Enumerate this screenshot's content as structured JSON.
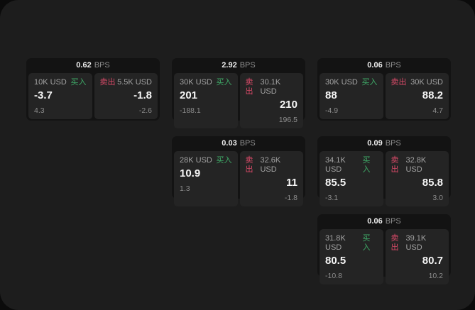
{
  "labels": {
    "bps_unit": "BPS",
    "buy": "买入",
    "sell": "卖出"
  },
  "colors": {
    "panel_bg": "#1d1d1d",
    "card_bg": "#131313",
    "tile_bg": "#242424",
    "buy_green": "#3fab68",
    "sell_red": "#d94a68"
  },
  "cards": [
    {
      "bps": "0.62",
      "buy": {
        "amount": "10K USD",
        "price": "-3.7",
        "sub": "4.3"
      },
      "sell": {
        "amount": "5.5K USD",
        "price": "-1.8",
        "sub": "-2.6"
      }
    },
    {
      "bps": "2.92",
      "buy": {
        "amount": "30K USD",
        "price": "201",
        "sub": "-188.1"
      },
      "sell": {
        "amount": "30.1K USD",
        "price": "210",
        "sub": "196.5"
      }
    },
    {
      "bps": "0.06",
      "buy": {
        "amount": "30K USD",
        "price": "88",
        "sub": "-4.9"
      },
      "sell": {
        "amount": "30K USD",
        "price": "88.2",
        "sub": "4.7"
      }
    },
    {
      "bps": "0.03",
      "buy": {
        "amount": "28K USD",
        "price": "10.9",
        "sub": "1.3"
      },
      "sell": {
        "amount": "32.6K USD",
        "price": "11",
        "sub": "-1.8"
      }
    },
    {
      "bps": "0.09",
      "buy": {
        "amount": "34.1K USD",
        "price": "85.5",
        "sub": "-3.1"
      },
      "sell": {
        "amount": "32.8K USD",
        "price": "85.8",
        "sub": "3.0"
      }
    },
    {
      "bps": "0.06",
      "buy": {
        "amount": "31.8K USD",
        "price": "80.5",
        "sub": "-10.8"
      },
      "sell": {
        "amount": "39.1K USD",
        "price": "80.7",
        "sub": "10.2"
      }
    }
  ]
}
